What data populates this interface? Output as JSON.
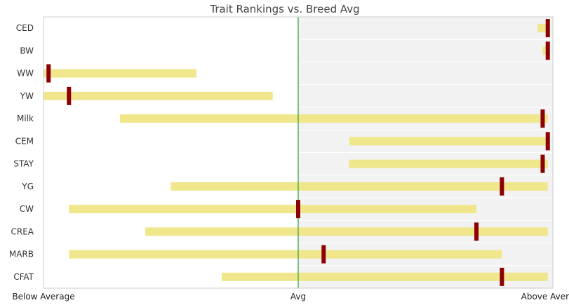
{
  "chart_data": {
    "type": "range-bar",
    "title": "Trait Rankings vs. Breed Avg",
    "x_tick_labels": [
      "Below Average",
      "Avg",
      "Above Average"
    ],
    "xlim": [
      -100,
      100
    ],
    "xlabel": "",
    "ylabel": "",
    "grid": false,
    "categories": [
      "CED",
      "BW",
      "WW",
      "YW",
      "Milk",
      "CEM",
      "STAY",
      "YG",
      "CW",
      "CREA",
      "MARB",
      "CFAT"
    ],
    "ranges": [
      [
        94,
        98
      ],
      [
        96,
        98
      ],
      [
        -100,
        -40
      ],
      [
        -100,
        -10
      ],
      [
        -70,
        98
      ],
      [
        20,
        98
      ],
      [
        20,
        98
      ],
      [
        -50,
        98
      ],
      [
        -90,
        70
      ],
      [
        -60,
        98
      ],
      [
        -90,
        80
      ],
      [
        -30,
        98
      ]
    ],
    "markers": [
      98,
      98,
      -98,
      -90,
      96,
      98,
      96,
      80,
      0,
      70,
      10,
      80
    ],
    "colors": {
      "range": "#f0e68c",
      "marker": "#8b0000",
      "avg_line": "#2e9e3e",
      "above_avg_shade": "#f2f2f2"
    }
  }
}
